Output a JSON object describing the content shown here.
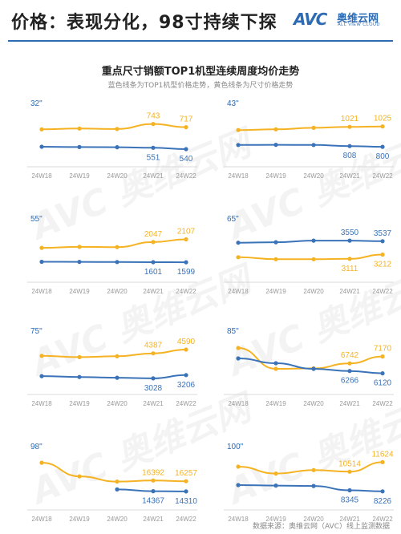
{
  "header": {
    "title": "价格：表现分化，98寸持续下探",
    "logo_mark": "AVC",
    "logo_cn": "奥维云网",
    "logo_en": "ALL VIEW CLOUD"
  },
  "main_title": "重点尺寸销额TOP1机型连续周度均价走势",
  "subtitle": "蓝色线条为TOP1机型价格走势，黄色线条为尺寸价格走势",
  "colors": {
    "yellow": "#f5b323",
    "blue": "#3b73b9",
    "accent": "#2d6bb3"
  },
  "watermark": "AVC 奥维云网",
  "source": "数据来源：奥维云网（AVC）线上监测数据",
  "chart_data": [
    {
      "type": "line",
      "size_label": "32\"",
      "categories": [
        "24W18",
        "24W19",
        "24W20",
        "24W21",
        "24W22"
      ],
      "series": [
        {
          "color": "yellow",
          "values": [
            700,
            706,
            702,
            743,
            717
          ]
        },
        {
          "color": "blue",
          "values": [
            560,
            557,
            556,
            551,
            540
          ]
        }
      ],
      "ylim": [
        450,
        850
      ],
      "labeled_points": [
        3,
        4
      ]
    },
    {
      "type": "line",
      "size_label": "43\"",
      "categories": [
        "24W18",
        "24W19",
        "24W20",
        "24W21",
        "24W22"
      ],
      "series": [
        {
          "color": "yellow",
          "values": [
            985,
            993,
            1010,
            1021,
            1025
          ]
        },
        {
          "color": "blue",
          "values": [
            820,
            822,
            820,
            808,
            800
          ]
        }
      ],
      "ylim": [
        650,
        1200
      ],
      "labeled_points": [
        3,
        4
      ]
    },
    {
      "type": "line",
      "size_label": "55\"",
      "categories": [
        "24W18",
        "24W19",
        "24W20",
        "24W21",
        "24W22"
      ],
      "series": [
        {
          "color": "yellow",
          "values": [
            1920,
            1940,
            1935,
            2047,
            2107
          ]
        },
        {
          "color": "blue",
          "values": [
            1610,
            1608,
            1606,
            1601,
            1599
          ]
        }
      ],
      "ylim": [
        1300,
        2400
      ],
      "labeled_points": [
        3,
        4
      ]
    },
    {
      "type": "line",
      "size_label": "65\"",
      "categories": [
        "24W18",
        "24W19",
        "24W20",
        "24W21",
        "24W22"
      ],
      "series": [
        {
          "color": "blue",
          "values": [
            3500,
            3510,
            3550,
            3550,
            3537
          ]
        },
        {
          "color": "yellow",
          "values": [
            3150,
            3100,
            3100,
            3111,
            3212
          ]
        }
      ],
      "ylim": [
        2700,
        3900
      ],
      "labeled_points": [
        3,
        4
      ]
    },
    {
      "type": "line",
      "size_label": "75\"",
      "categories": [
        "24W18",
        "24W19",
        "24W20",
        "24W21",
        "24W22"
      ],
      "series": [
        {
          "color": "yellow",
          "values": [
            4250,
            4180,
            4230,
            4387,
            4590
          ]
        },
        {
          "color": "blue",
          "values": [
            3150,
            3100,
            3060,
            3028,
            3206
          ]
        }
      ],
      "ylim": [
        2500,
        5200
      ],
      "labeled_points": [
        3,
        4
      ]
    },
    {
      "type": "line",
      "size_label": "85\"",
      "categories": [
        "24W18",
        "24W19",
        "24W20",
        "24W21",
        "24W22"
      ],
      "series": [
        {
          "color": "yellow",
          "values": [
            7700,
            6400,
            6430,
            6742,
            7170
          ]
        },
        {
          "color": "blue",
          "values": [
            7050,
            6750,
            6400,
            6266,
            6120
          ]
        }
      ],
      "ylim": [
        5200,
        8300
      ],
      "labeled_points": [
        3,
        4
      ]
    },
    {
      "type": "line",
      "size_label": "98\"",
      "categories": [
        "24W18",
        "24W19",
        "24W20",
        "24W21",
        "24W22"
      ],
      "series": [
        {
          "color": "yellow",
          "values": [
            19800,
            17200,
            16200,
            16392,
            16257
          ]
        },
        {
          "color": "blue",
          "values": [
            null,
            null,
            14700,
            14367,
            14310
          ]
        }
      ],
      "ylim": [
        12000,
        21500
      ],
      "labeled_points": [
        3,
        4
      ]
    },
    {
      "type": "line",
      "size_label": "100\"",
      "categories": [
        "24W18",
        "24W19",
        "24W20",
        "24W21",
        "24W22"
      ],
      "series": [
        {
          "color": "yellow",
          "values": [
            11100,
            10300,
            10700,
            10514,
            11624
          ]
        },
        {
          "color": "blue",
          "values": [
            8950,
            8900,
            8850,
            8345,
            8226
          ]
        }
      ],
      "ylim": [
        6800,
        12600
      ],
      "labeled_points": [
        3,
        4
      ]
    }
  ]
}
